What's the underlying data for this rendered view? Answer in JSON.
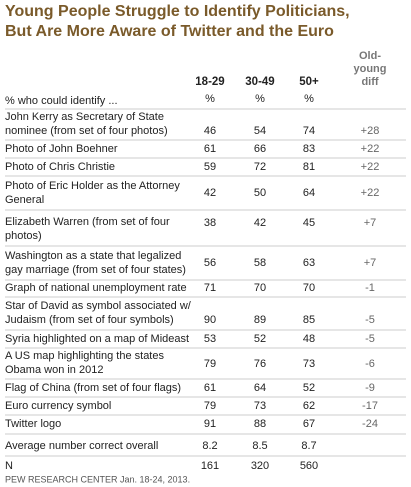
{
  "header": {
    "title": [
      "Young People Struggle to Identify Politicians,",
      "But Are More Aware of Twitter and the Euro"
    ]
  },
  "table": {
    "columns": [
      "18-29",
      "30-49",
      "50+"
    ],
    "diff_header": [
      "Old-",
      "young",
      "diff"
    ],
    "subheader": "% who could identify ...",
    "unit": "%",
    "rows": [
      {
        "label": [
          "John Kerry as Secretary of State",
          "nominee (from set of four photos)"
        ],
        "values": [
          46,
          54,
          74
        ],
        "diff": "+28"
      },
      {
        "label": [
          "Photo of John Boehner"
        ],
        "values": [
          61,
          66,
          83
        ],
        "diff": "+22"
      },
      {
        "label": [
          "Photo of Chris Christie"
        ],
        "values": [
          59,
          72,
          81
        ],
        "diff": "+22"
      },
      {
        "label": [
          "Photo of Eric Holder as the Attorney",
          "General"
        ],
        "values": [
          42,
          50,
          64
        ],
        "diff": "+22"
      },
      {
        "label": [
          "Elizabeth Warren (from set of four",
          "photos)"
        ],
        "values": [
          38,
          42,
          45
        ],
        "diff": "+7"
      },
      {
        "label": [
          "Washington as a state that legalized",
          "gay marriage (from set of four states)"
        ],
        "values": [
          56,
          58,
          63
        ],
        "diff": "+7"
      },
      {
        "label": [
          "Graph of national unemployment rate"
        ],
        "values": [
          71,
          70,
          70
        ],
        "diff": "-1"
      },
      {
        "label": [
          "Star of David as symbol associated w/",
          "Judaism (from set of four symbols)"
        ],
        "values": [
          90,
          89,
          85
        ],
        "diff": "-5"
      },
      {
        "label": [
          "Syria highlighted on a map of Mideast"
        ],
        "values": [
          53,
          52,
          48
        ],
        "diff": "-5"
      },
      {
        "label": [
          "A US map highlighting the states",
          "Obama won in 2012"
        ],
        "values": [
          79,
          76,
          73
        ],
        "diff": "-6"
      },
      {
        "label": [
          "Flag of China (from set of four flags)"
        ],
        "values": [
          61,
          64,
          52
        ],
        "diff": "-9"
      },
      {
        "label": [
          "Euro currency symbol"
        ],
        "values": [
          79,
          73,
          62
        ],
        "diff": "-17"
      },
      {
        "label": [
          "Twitter logo"
        ],
        "values": [
          91,
          88,
          67
        ],
        "diff": "-24"
      },
      {
        "label": [
          "Average number correct overall"
        ],
        "values": [
          8.2,
          8.5,
          8.7
        ]
      }
    ],
    "n": {
      "label": "N",
      "values": [
        161,
        320,
        560
      ]
    }
  },
  "footer": {
    "source": "PEW RESEARCH CENTER  Jan. 18-24, 2013."
  }
}
